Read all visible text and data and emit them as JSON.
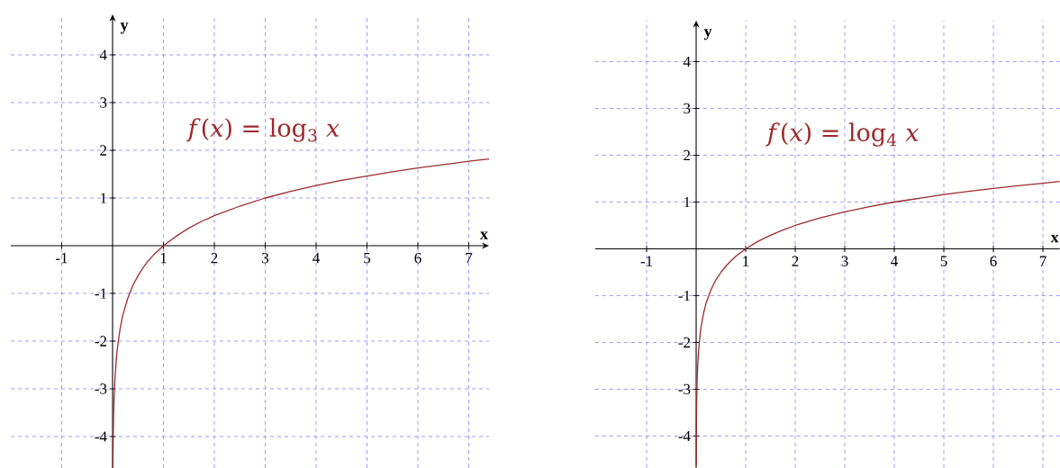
{
  "chart_data": [
    {
      "type": "line",
      "xlabel": "x",
      "ylabel": "y",
      "xlim": [
        -2,
        7.4
      ],
      "ylim": [
        -4.66,
        4.85
      ],
      "xticks": [
        -1,
        1,
        2,
        3,
        4,
        5,
        6,
        7
      ],
      "yticks": [
        -4,
        -3,
        -2,
        -1,
        1,
        2,
        3,
        4
      ],
      "grid": true,
      "line_style": "solid",
      "marker": "none",
      "series": [
        {
          "name": "*f*(*x*) = log$_{3}$ *x*",
          "color": "#9e2a2b",
          "x": [
            0.006,
            0.01,
            0.02,
            0.03,
            0.05,
            0.08,
            0.1,
            0.15,
            0.2,
            0.3,
            0.4,
            0.5,
            0.6,
            0.7,
            0.8,
            0.9,
            1,
            1.25,
            1.5,
            1.75,
            2,
            2.5,
            3,
            3.5,
            4,
            4.5,
            5,
            5.5,
            6,
            6.5,
            7,
            7.4
          ],
          "values": [
            -4.66,
            -4.19,
            -3.56,
            -3.19,
            -2.73,
            -2.3,
            -2.1,
            -1.73,
            -1.46,
            -1.1,
            -0.83,
            -0.63,
            -0.46,
            -0.32,
            -0.2,
            -0.1,
            0,
            0.2,
            0.37,
            0.51,
            0.63,
            0.83,
            1,
            1.14,
            1.26,
            1.37,
            1.46,
            1.55,
            1.63,
            1.7,
            1.77,
            1.82
          ]
        }
      ]
    },
    {
      "type": "line",
      "xlabel": "x",
      "ylabel": "y",
      "xlim": [
        -2.04,
        7.34
      ],
      "ylim": [
        -4.68,
        4.88
      ],
      "xticks": [
        -1,
        1,
        2,
        3,
        4,
        5,
        6,
        7
      ],
      "yticks": [
        -4,
        -3,
        -2,
        -1,
        1,
        2,
        3,
        4
      ],
      "grid": true,
      "line_style": "solid",
      "marker": "none",
      "series": [
        {
          "name": "*f*(*x*) = log$_{4}$ *x*",
          "color": "#9e2a2b",
          "x": [
            0.0016,
            0.005,
            0.01,
            0.02,
            0.03,
            0.05,
            0.08,
            0.1,
            0.15,
            0.2,
            0.3,
            0.4,
            0.5,
            0.6,
            0.7,
            0.8,
            0.9,
            1,
            1.25,
            1.5,
            1.75,
            2,
            2.5,
            3,
            3.5,
            4,
            4.5,
            5,
            5.5,
            6,
            6.5,
            7,
            7.34
          ],
          "values": [
            -4.64,
            -3.82,
            -3.32,
            -2.82,
            -2.53,
            -2.16,
            -1.82,
            -1.66,
            -1.37,
            -1.16,
            -0.87,
            -0.66,
            -0.5,
            -0.37,
            -0.26,
            -0.16,
            -0.08,
            0,
            0.16,
            0.29,
            0.4,
            0.5,
            0.66,
            0.79,
            0.9,
            1,
            1.08,
            1.16,
            1.23,
            1.29,
            1.35,
            1.4,
            1.44
          ]
        }
      ]
    }
  ]
}
